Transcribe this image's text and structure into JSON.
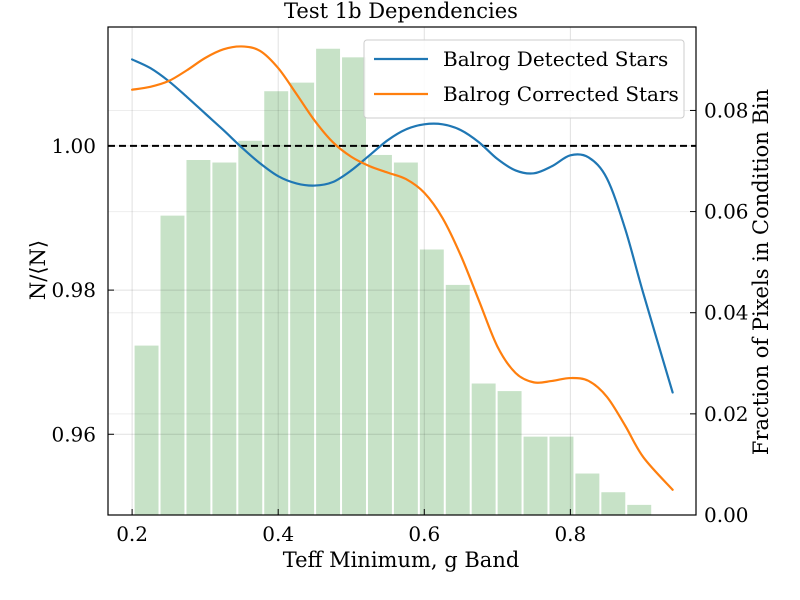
{
  "chart_data": {
    "type": "line",
    "title": "Test 1b Dependencies",
    "xlabel": "Teff Minimum, g Band",
    "ylabel": "N/⟨N⟩",
    "ylabel_right": "Fraction of Pixels in Condition Bin",
    "xlim": [
      0.167,
      0.972
    ],
    "ylim": [
      0.9488,
      1.0165
    ],
    "ylim_right": [
      0.0,
      0.0965
    ],
    "x_ticks": [
      0.2,
      0.4,
      0.6,
      0.8
    ],
    "x_tick_labels": [
      "0.2",
      "0.4",
      "0.6",
      "0.8"
    ],
    "y_ticks": [
      0.96,
      0.98,
      1.0
    ],
    "y_tick_labels": [
      "0.96",
      "0.98",
      "1.00"
    ],
    "y_ticks_right": [
      0.0,
      0.02,
      0.04,
      0.06,
      0.08
    ],
    "y_tick_labels_right": [
      "0.00",
      "0.02",
      "0.04",
      "0.06",
      "0.08"
    ],
    "grid": true,
    "legend_position": "top-right",
    "reference_line": {
      "y": 1.0,
      "style": "dashed",
      "color": "#000000"
    },
    "series": [
      {
        "name": "Balrog Detected Stars",
        "color": "#1f77b4",
        "x": [
          0.2,
          0.225,
          0.25,
          0.275,
          0.3,
          0.325,
          0.35,
          0.375,
          0.4,
          0.425,
          0.45,
          0.475,
          0.5,
          0.525,
          0.55,
          0.575,
          0.6,
          0.625,
          0.65,
          0.675,
          0.7,
          0.725,
          0.75,
          0.775,
          0.8,
          0.825,
          0.85,
          0.875,
          0.9,
          0.94
        ],
        "y": [
          1.012,
          1.0108,
          1.009,
          1.0068,
          1.0045,
          1.0022,
          0.9998,
          0.9976,
          0.9958,
          0.9948,
          0.9945,
          0.995,
          0.9966,
          0.9987,
          1.0008,
          1.0023,
          1.003,
          1.003,
          1.0022,
          1.0005,
          0.9982,
          0.9966,
          0.9962,
          0.9972,
          0.9987,
          0.9984,
          0.9955,
          0.9885,
          0.9795,
          0.9658
        ]
      },
      {
        "name": "Balrog Corrected Stars",
        "color": "#ff7f0e",
        "x": [
          0.2,
          0.225,
          0.25,
          0.275,
          0.3,
          0.325,
          0.35,
          0.375,
          0.4,
          0.425,
          0.45,
          0.475,
          0.5,
          0.525,
          0.55,
          0.575,
          0.6,
          0.625,
          0.65,
          0.675,
          0.7,
          0.725,
          0.75,
          0.775,
          0.8,
          0.825,
          0.85,
          0.875,
          0.9,
          0.94
        ],
        "y": [
          1.0078,
          1.0082,
          1.009,
          1.0105,
          1.0122,
          1.0134,
          1.0138,
          1.0132,
          1.0108,
          1.0072,
          1.0035,
          1.0005,
          0.9985,
          0.9972,
          0.9963,
          0.9954,
          0.9935,
          0.99,
          0.9848,
          0.9785,
          0.9722,
          0.9685,
          0.9672,
          0.9674,
          0.9678,
          0.9674,
          0.9652,
          0.9612,
          0.9568,
          0.9523
        ]
      }
    ],
    "histogram": {
      "color": "#c7e2c7",
      "bin_width": 0.0355,
      "centers": [
        0.2198,
        0.2553,
        0.2908,
        0.3263,
        0.3618,
        0.3973,
        0.4328,
        0.4683,
        0.5038,
        0.5393,
        0.5748,
        0.6103,
        0.6458,
        0.6813,
        0.7168,
        0.7523,
        0.7878,
        0.8233,
        0.8588,
        0.8943,
        0.9298
      ],
      "values": [
        0.0335,
        0.0592,
        0.0702,
        0.0697,
        0.074,
        0.0838,
        0.0855,
        0.0922,
        0.0905,
        0.0712,
        0.0697,
        0.0525,
        0.0455,
        0.026,
        0.0245,
        0.0155,
        0.0155,
        0.0082,
        0.0045,
        0.002,
        0.0
      ]
    }
  }
}
